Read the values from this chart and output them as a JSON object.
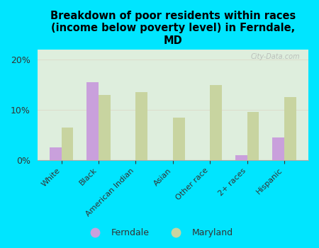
{
  "title": "Breakdown of poor residents within races\n(income below poverty level) in Ferndale,\nMD",
  "categories": [
    "White",
    "Black",
    "American Indian",
    "Asian",
    "Other race",
    "2+ races",
    "Hispanic"
  ],
  "ferndale": [
    2.5,
    15.5,
    0.0,
    0.0,
    0.0,
    1.0,
    4.5
  ],
  "maryland": [
    6.5,
    13.0,
    13.5,
    8.5,
    15.0,
    9.5,
    12.5
  ],
  "ferndale_color": "#c9a0dc",
  "maryland_color": "#c8d4a0",
  "bg_color": "#00e5ff",
  "plot_bg_color": "#deeedd",
  "ylim": [
    0,
    22
  ],
  "yticks": [
    0,
    10,
    20
  ],
  "ytick_labels": [
    "0%",
    "10%",
    "20%"
  ],
  "grid_color": "#ddddcc",
  "watermark": "City-Data.com",
  "bar_width": 0.32
}
